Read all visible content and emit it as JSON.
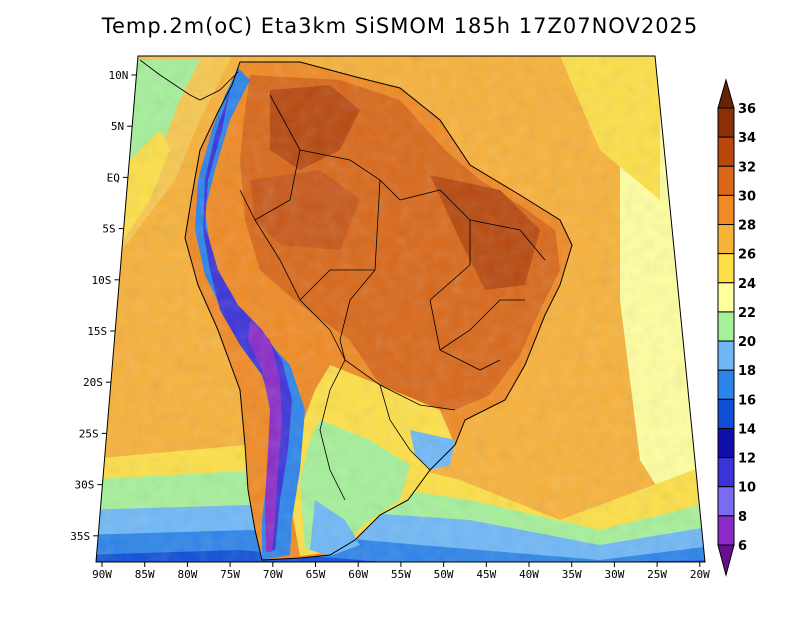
{
  "title": "Temp.2m(oC) Eta3km SiSMOM 185h 17Z07NOV2025",
  "lat_labels": [
    "10N",
    "5N",
    "EQ",
    "5S",
    "10S",
    "15S",
    "20S",
    "25S",
    "30S",
    "35S"
  ],
  "lon_labels": [
    "90W",
    "85W",
    "80W",
    "75W",
    "70W",
    "65W",
    "60W",
    "55W",
    "50W",
    "45W",
    "40W",
    "35W",
    "30W",
    "25W",
    "20W"
  ],
  "colorbar": {
    "labels": [
      "6",
      "8",
      "10",
      "12",
      "14",
      "16",
      "18",
      "20",
      "22",
      "24",
      "26",
      "28",
      "30",
      "32",
      "34",
      "36"
    ],
    "colors": [
      "#6a0d8f",
      "#8b2cc8",
      "#7a6cf0",
      "#3b33d8",
      "#1010a8",
      "#0f4fd6",
      "#2c84ea",
      "#6fb8f7",
      "#a6f09a",
      "#ffffa0",
      "#fde047",
      "#f8b23a",
      "#f08a24",
      "#d9681a",
      "#b8480e",
      "#8a3008",
      "#6a2206"
    ]
  }
}
